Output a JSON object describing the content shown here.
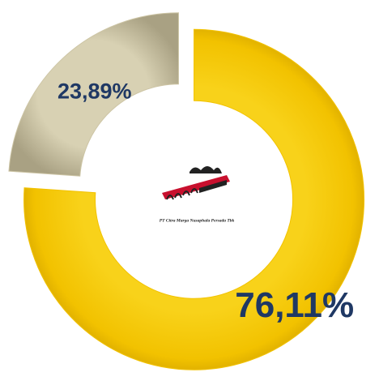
{
  "chart_data": {
    "type": "donut",
    "values": [
      76.11,
      23.89
    ],
    "value_labels": [
      "76,11%",
      "23,89%"
    ],
    "colors": [
      "#f2c200",
      "#cdc5a5"
    ],
    "label_color": "#1f3864",
    "center_text": "PT Citra Marga Nusaphala Persada Tbk"
  }
}
